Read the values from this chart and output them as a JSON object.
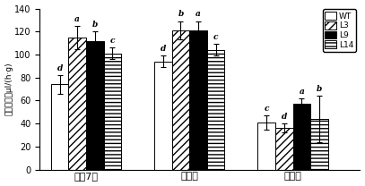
{
  "groups": [
    "花后7天",
    "转色果",
    "完熟果"
  ],
  "series": [
    "WT",
    "L3",
    "L9",
    "L14"
  ],
  "values": [
    [
      74,
      115,
      112,
      101
    ],
    [
      94,
      121,
      121,
      104
    ],
    [
      41,
      36,
      57,
      44
    ]
  ],
  "errors": [
    [
      8,
      10,
      8,
      5
    ],
    [
      5,
      8,
      8,
      5
    ],
    [
      6,
      4,
      5,
      20
    ]
  ],
  "letters": [
    [
      "d",
      "a",
      "b",
      "c"
    ],
    [
      "d",
      "b",
      "a",
      "c"
    ],
    [
      "c",
      "d",
      "a",
      "b"
    ]
  ],
  "ylabel": "乙烯释放量μl/(h·g)",
  "ylim": [
    0,
    140
  ],
  "yticks": [
    0,
    20,
    40,
    60,
    80,
    100,
    120,
    140
  ],
  "bar_width": 0.17,
  "group_positions": [
    1.0,
    2.0,
    3.0
  ],
  "colors": [
    "white",
    "white",
    "black",
    "white"
  ],
  "hatches": [
    "",
    "////",
    "",
    "----"
  ],
  "legend_labels": [
    "WT",
    "L3",
    "L9",
    "L14"
  ],
  "legend_hatches": [
    "",
    "////",
    "",
    "----"
  ],
  "legend_facecolors": [
    "white",
    "white",
    "black",
    "white"
  ],
  "edgecolor": "black",
  "letter_fontsize": 6.5,
  "tick_fontsize": 7,
  "ylabel_fontsize": 6.5,
  "xticklabel_fontsize": 8
}
